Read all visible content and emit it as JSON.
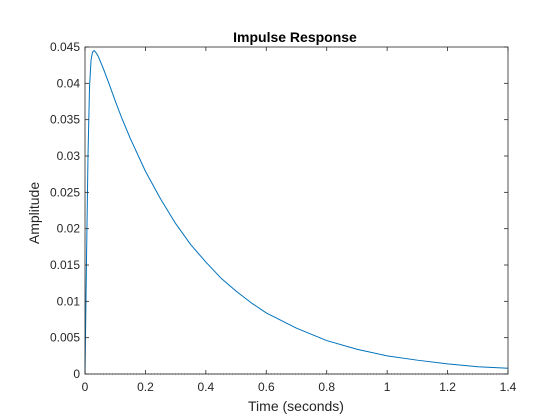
{
  "chart_data": {
    "type": "line",
    "title": "Impulse Response",
    "xlabel": "Time (seconds)",
    "ylabel": "Amplitude",
    "xlim": [
      0,
      1.4
    ],
    "ylim": [
      0,
      0.045
    ],
    "xticks": [
      "0",
      "0.2",
      "0.4",
      "0.6",
      "0.8",
      "1",
      "1.2",
      "1.4"
    ],
    "yticks": [
      "0",
      "0.005",
      "0.01",
      "0.015",
      "0.02",
      "0.025",
      "0.03",
      "0.035",
      "0.04",
      "0.045"
    ],
    "grid": false,
    "series": [
      {
        "color": "#0072bd",
        "x": [
          0,
          0.005,
          0.01,
          0.015,
          0.02,
          0.025,
          0.03,
          0.035,
          0.04,
          0.045,
          0.05,
          0.06,
          0.07,
          0.08,
          0.1,
          0.12,
          0.15,
          0.2,
          0.25,
          0.3,
          0.35,
          0.4,
          0.45,
          0.5,
          0.55,
          0.6,
          0.7,
          0.8,
          0.9,
          1.0,
          1.1,
          1.2,
          1.3,
          1.4
        ],
        "y": [
          0,
          0.0158,
          0.0302,
          0.0395,
          0.0432,
          0.0443,
          0.0445,
          0.0443,
          0.044,
          0.0436,
          0.0431,
          0.0421,
          0.041,
          0.0399,
          0.0376,
          0.0354,
          0.0324,
          0.0279,
          0.0241,
          0.0207,
          0.0178,
          0.0154,
          0.0132,
          0.0114,
          0.0098,
          0.0084,
          0.0063,
          0.0046,
          0.0034,
          0.0025,
          0.0019,
          0.0014,
          0.001,
          0.0008
        ]
      }
    ]
  }
}
